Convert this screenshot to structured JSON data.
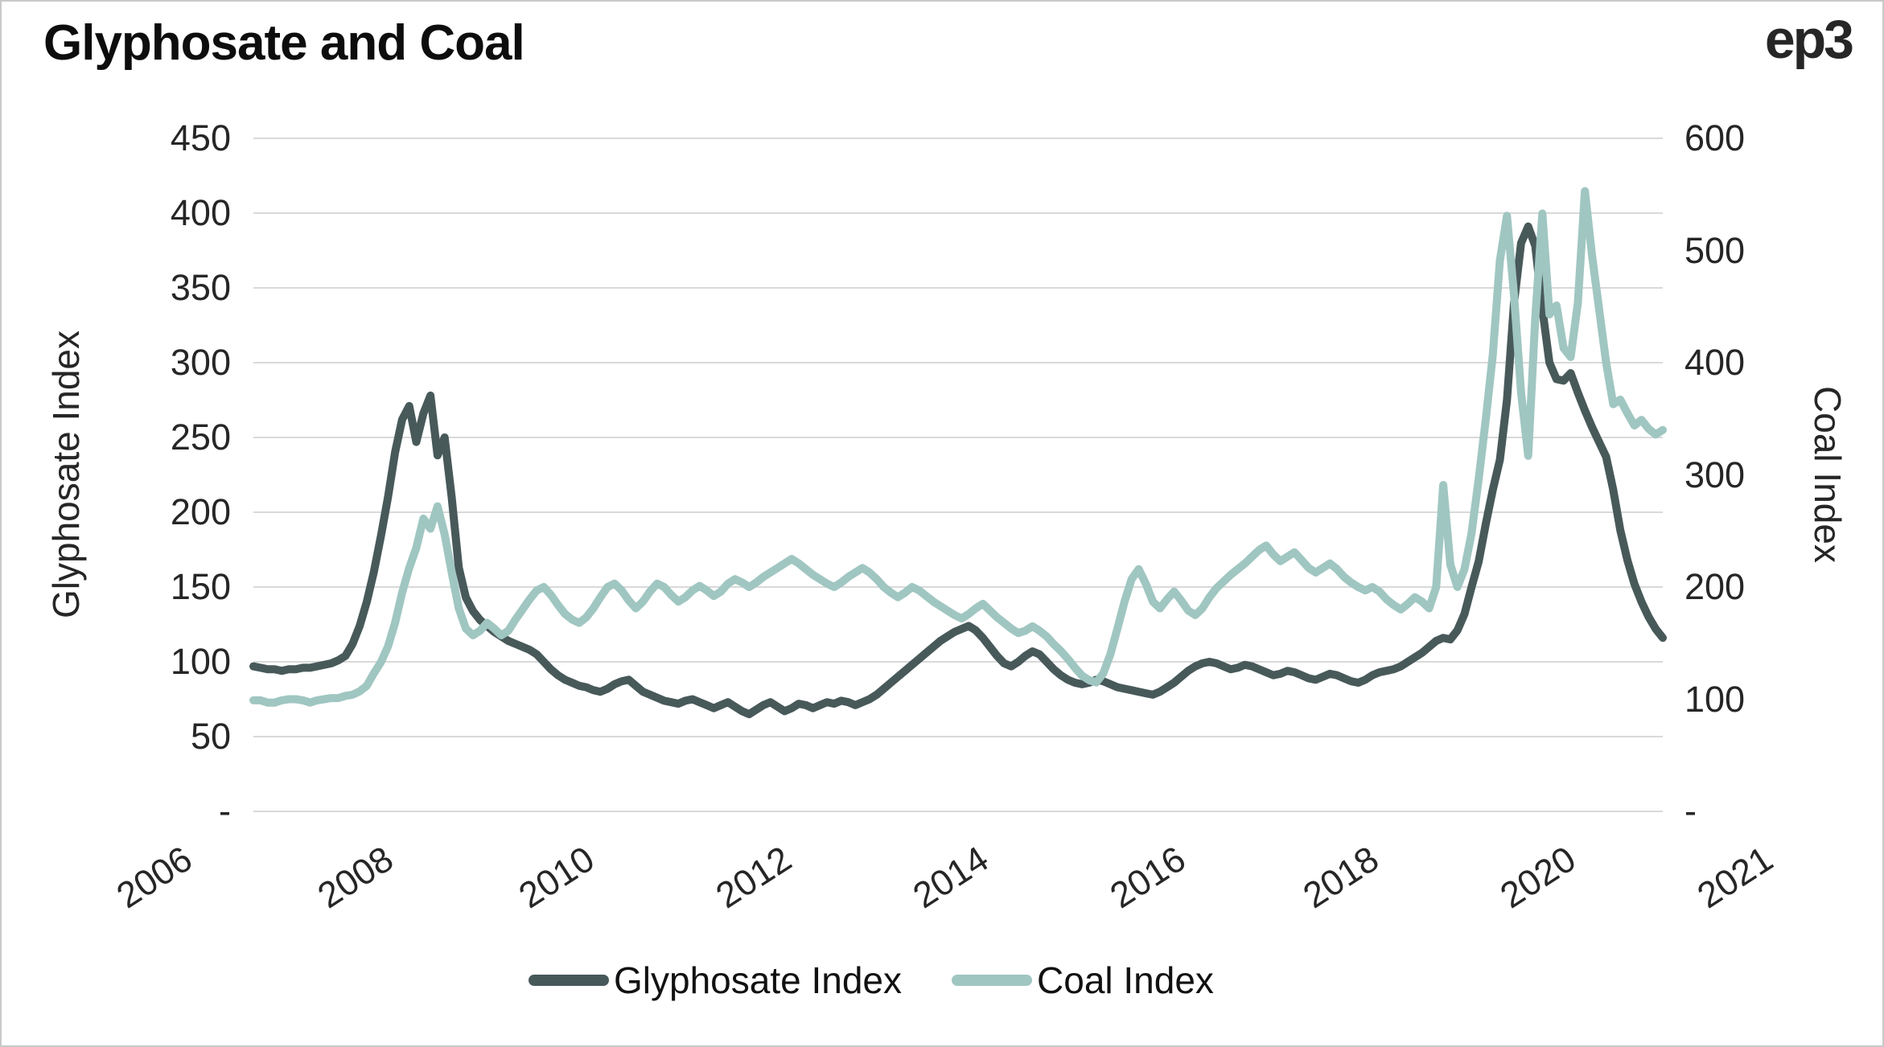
{
  "header": {
    "title": "Glyphosate and Coal",
    "logo_text": "ep3"
  },
  "colors": {
    "glyphosate": "#48595a",
    "coal": "#a0c6c1",
    "gridline": "#d9d9d9",
    "tick_text": "#262626",
    "title_text": "#0d0d0d",
    "border": "#c9c9c9",
    "background": "#ffffff"
  },
  "left_axis": {
    "title": "Glyphosate Index",
    "tick_labels": [
      "450",
      "400",
      "350",
      "300",
      "250",
      "200",
      "150",
      "100",
      "50",
      "-"
    ],
    "tick_values": [
      450,
      400,
      350,
      300,
      250,
      200,
      150,
      100,
      50,
      0
    ]
  },
  "right_axis": {
    "title": "Coal Index",
    "tick_labels": [
      "600",
      "500",
      "400",
      "300",
      "200",
      "100",
      "-"
    ],
    "tick_values": [
      600,
      500,
      400,
      300,
      200,
      100,
      0
    ]
  },
  "x_axis": {
    "labels": [
      "2006",
      "2008",
      "2010",
      "2012",
      "2014",
      "2016",
      "2018",
      "2020",
      "2021"
    ]
  },
  "legend": {
    "items": [
      {
        "label": "Glyphosate Index",
        "color_key": "glyphosate"
      },
      {
        "label": "Coal Index",
        "color_key": "coal"
      }
    ]
  },
  "chart_data": {
    "type": "line",
    "title": "Glyphosate and Coal",
    "x_range_note": "monthly samples, Jan 2006 through Aug 2022, 200 points",
    "x_tick_labels": [
      "2006",
      "2008",
      "2010",
      "2012",
      "2014",
      "2016",
      "2018",
      "2020",
      "2021"
    ],
    "grid": true,
    "legend_position": "bottom",
    "left_ylim": [
      0,
      450
    ],
    "right_ylim": [
      0,
      600
    ],
    "series": [
      {
        "name": "Glyphosate Index",
        "axis": "left",
        "color": "#48595a",
        "values": [
          97,
          96,
          95,
          95,
          94,
          95,
          95,
          96,
          96,
          97,
          98,
          99,
          101,
          104,
          112,
          124,
          140,
          160,
          184,
          210,
          240,
          262,
          271,
          247,
          266,
          278,
          238,
          250,
          210,
          163,
          143,
          134,
          128,
          124,
          120,
          117,
          114,
          112,
          110,
          108,
          105,
          100,
          95,
          91,
          88,
          86,
          84,
          83,
          81,
          80,
          82,
          85,
          87,
          88,
          84,
          80,
          78,
          76,
          74,
          73,
          72,
          74,
          75,
          73,
          71,
          69,
          71,
          73,
          70,
          67,
          65,
          68,
          71,
          73,
          70,
          67,
          69,
          72,
          71,
          69,
          71,
          73,
          72,
          74,
          73,
          71,
          73,
          75,
          78,
          82,
          86,
          90,
          94,
          98,
          102,
          106,
          110,
          114,
          117,
          120,
          122,
          124,
          121,
          116,
          110,
          104,
          99,
          97,
          100,
          104,
          107,
          105,
          100,
          95,
          91,
          88,
          86,
          85,
          86,
          88,
          87,
          85,
          83,
          82,
          81,
          80,
          79,
          78,
          80,
          83,
          86,
          90,
          94,
          97,
          99,
          100,
          99,
          97,
          95,
          96,
          98,
          97,
          95,
          93,
          91,
          92,
          94,
          93,
          91,
          89,
          88,
          90,
          92,
          91,
          89,
          87,
          86,
          88,
          91,
          93,
          94,
          95,
          97,
          100,
          103,
          106,
          110,
          114,
          116,
          115,
          121,
          132,
          150,
          167,
          192,
          215,
          235,
          275,
          340,
          380,
          391,
          378,
          336,
          300,
          289,
          288,
          293,
          280,
          268,
          257,
          247,
          237,
          215,
          188,
          168,
          152,
          140,
          130,
          122,
          116
        ]
      },
      {
        "name": "Coal Index",
        "axis": "right",
        "color": "#a0c6c1",
        "values": [
          99,
          99,
          97,
          97,
          99,
          100,
          100,
          99,
          97,
          99,
          100,
          101,
          101,
          103,
          104,
          107,
          112,
          123,
          133,
          147,
          168,
          195,
          217,
          235,
          261,
          252,
          272,
          247,
          213,
          181,
          163,
          157,
          161,
          168,
          163,
          157,
          161,
          171,
          180,
          189,
          197,
          200,
          193,
          184,
          176,
          171,
          168,
          173,
          181,
          191,
          200,
          203,
          197,
          188,
          181,
          187,
          196,
          203,
          200,
          193,
          187,
          191,
          197,
          201,
          197,
          192,
          196,
          203,
          207,
          204,
          200,
          204,
          209,
          213,
          217,
          221,
          225,
          221,
          216,
          211,
          207,
          203,
          200,
          204,
          209,
          213,
          217,
          213,
          207,
          200,
          195,
          191,
          195,
          200,
          197,
          192,
          187,
          183,
          179,
          175,
          172,
          176,
          181,
          185,
          179,
          173,
          168,
          163,
          159,
          161,
          165,
          161,
          156,
          149,
          143,
          136,
          128,
          121,
          117,
          115,
          123,
          140,
          163,
          187,
          207,
          216,
          203,
          187,
          181,
          189,
          196,
          188,
          179,
          175,
          181,
          191,
          199,
          205,
          211,
          216,
          221,
          227,
          233,
          237,
          229,
          223,
          227,
          231,
          224,
          217,
          213,
          217,
          221,
          216,
          209,
          204,
          200,
          197,
          200,
          196,
          189,
          184,
          180,
          185,
          191,
          187,
          181,
          200,
          291,
          220,
          200,
          216,
          248,
          296,
          349,
          407,
          491,
          531,
          460,
          373,
          317,
          440,
          533,
          443,
          451,
          413,
          405,
          453,
          553,
          496,
          448,
          400,
          363,
          367,
          355,
          344,
          349,
          341,
          336,
          340
        ]
      }
    ]
  }
}
